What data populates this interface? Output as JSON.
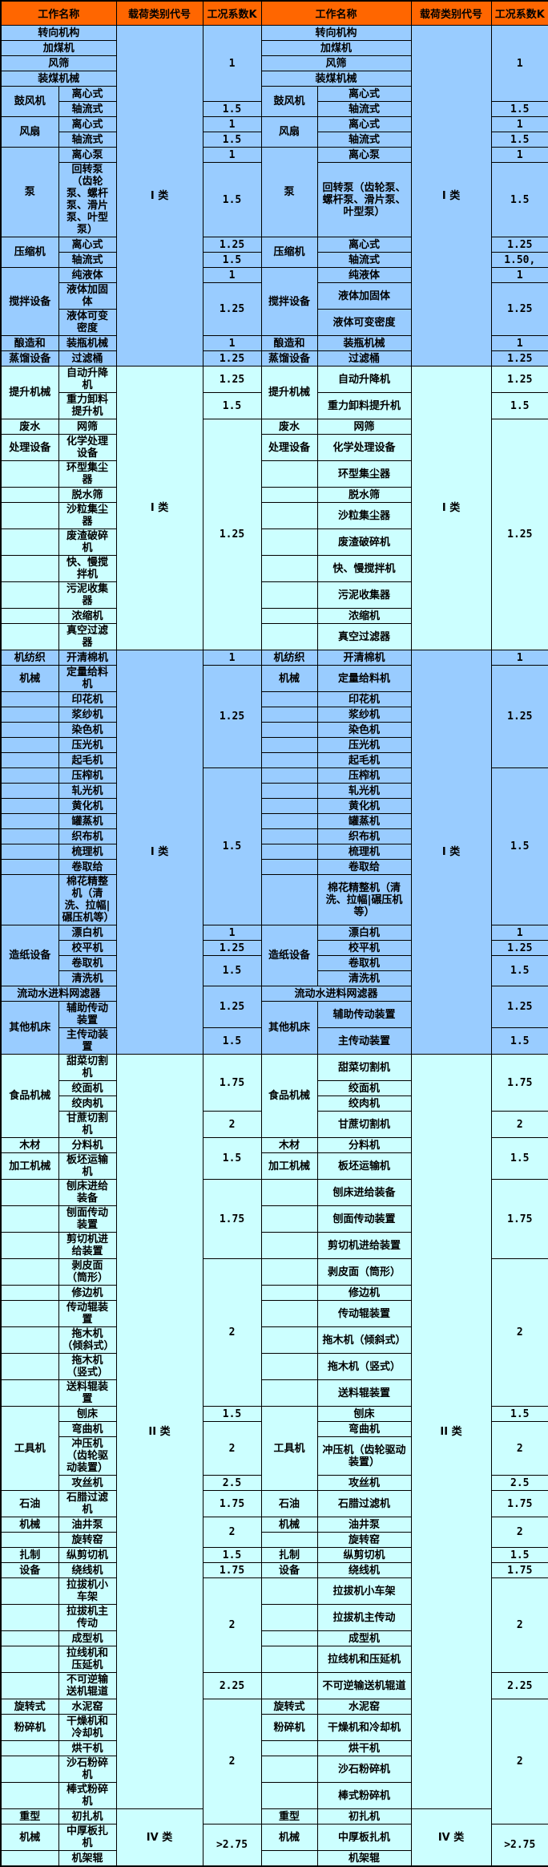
{
  "headers": {
    "work_name": "工作名称",
    "load_category": "载荷类别代号",
    "condition_coeff": "工况系数K"
  },
  "colors": {
    "header_bg": "#FF6600",
    "section_blue": "#99CCFF",
    "section_cyan": "#CCFFFF",
    "border": "#000000",
    "text": "#000000"
  },
  "load_categories": [
    "I 类",
    "II 类",
    "IV 类"
  ],
  "rows": [
    {
      "bg": "blue",
      "b": {
        "t": "转向机构",
        "cs": 2
      },
      "c": {
        "t": "I 类",
        "rs": 17
      },
      "k": {
        "t": "1",
        "rs": 5
      }
    },
    {
      "bg": "blue",
      "b": {
        "t": "加煤机",
        "cs": 2
      }
    },
    {
      "bg": "blue",
      "b": {
        "t": "风筛",
        "cs": 2
      }
    },
    {
      "bg": "blue",
      "b": {
        "t": "装煤机械",
        "cs": 2
      }
    },
    {
      "bg": "blue",
      "a": {
        "t": "鼓风机",
        "rs": 2
      },
      "b": {
        "t": "离心式"
      }
    },
    {
      "bg": "blue",
      "b": {
        "t": "轴流式"
      },
      "k": {
        "t": "1.5"
      }
    },
    {
      "bg": "blue",
      "a": {
        "t": "风扇",
        "rs": 2
      },
      "b": {
        "t": "离心式"
      },
      "k": {
        "t": "1"
      }
    },
    {
      "bg": "blue",
      "b": {
        "t": "轴流式"
      },
      "k": {
        "t": "1.5"
      }
    },
    {
      "bg": "blue",
      "a": {
        "t": "泵",
        "rs": 2
      },
      "b": {
        "t": "离心泵"
      },
      "k": {
        "t": "1"
      }
    },
    {
      "bg": "blue",
      "b": {
        "t": "回转泵（齿轮泵、螺杆泵、滑片泵、叶型泵）"
      },
      "k": {
        "t": "1.5"
      }
    },
    {
      "bg": "blue",
      "a": {
        "t": "压缩机",
        "rs": 2
      },
      "b": {
        "t": "离心式"
      },
      "k": {
        "t": "1.25"
      }
    },
    {
      "bg": "blue",
      "b": {
        "t": "轴流式"
      },
      "k": {
        "t": "1.5"
      },
      "kr": "1.50,"
    },
    {
      "bg": "blue",
      "a": {
        "t": "搅拌设备",
        "rs": 3
      },
      "b": {
        "t": "纯液体"
      },
      "k": {
        "t": "1"
      }
    },
    {
      "bg": "blue",
      "b": {
        "t": "液体加固体"
      },
      "k": {
        "t": "1.25",
        "rs": 2
      }
    },
    {
      "bg": "blue",
      "b": {
        "t": "液体可变密度"
      }
    },
    {
      "bg": "blue",
      "a": {
        "t": "酿造和"
      },
      "b": {
        "t": "装瓶机械"
      },
      "k": {
        "t": "1"
      }
    },
    {
      "bg": "blue",
      "a": {
        "t": "蒸馏设备"
      },
      "b": {
        "t": "过滤桶"
      },
      "k": {
        "t": "1.25"
      }
    },
    {
      "bg": "cyan",
      "a": {
        "t": "提升机械",
        "rs": 2
      },
      "b": {
        "t": "自动升降机"
      },
      "c": {
        "t": "I 类",
        "rs": 12
      },
      "k": {
        "t": "1.25"
      }
    },
    {
      "bg": "cyan",
      "b": {
        "t": "重力卸料提升机"
      },
      "k": {
        "t": "1.5"
      }
    },
    {
      "bg": "cyan",
      "a": {
        "t": "废水"
      },
      "b": {
        "t": "网筛"
      },
      "k": {
        "t": "1.25",
        "rs": 10
      }
    },
    {
      "bg": "cyan",
      "a": {
        "t": "处理设备"
      },
      "b": {
        "t": "化学处理设备"
      }
    },
    {
      "bg": "cyan",
      "a": {
        "t": ""
      },
      "b": {
        "t": "环型集尘器"
      }
    },
    {
      "bg": "cyan",
      "a": {
        "t": ""
      },
      "b": {
        "t": "脱水筛"
      }
    },
    {
      "bg": "cyan",
      "a": {
        "t": ""
      },
      "b": {
        "t": "沙粒集尘器"
      }
    },
    {
      "bg": "cyan",
      "a": {
        "t": ""
      },
      "b": {
        "t": "废渣破碎机"
      }
    },
    {
      "bg": "cyan",
      "a": {
        "t": ""
      },
      "b": {
        "t": "快、慢搅拌机"
      }
    },
    {
      "bg": "cyan",
      "a": {
        "t": ""
      },
      "b": {
        "t": "污泥收集器"
      }
    },
    {
      "bg": "cyan",
      "a": {
        "t": ""
      },
      "b": {
        "t": "浓缩机"
      }
    },
    {
      "bg": "cyan",
      "a": {
        "t": ""
      },
      "b": {
        "t": "真空过滤器"
      }
    },
    {
      "bg": "blue",
      "a": {
        "t": "机纺织"
      },
      "b": {
        "t": "开清棉机"
      },
      "c": {
        "t": "I 类",
        "rs": 22
      },
      "k": {
        "t": "1"
      }
    },
    {
      "bg": "blue",
      "a": {
        "t": "机械"
      },
      "b": {
        "t": "定量给料机"
      },
      "k": {
        "t": "1.25",
        "rs": 6
      }
    },
    {
      "bg": "blue",
      "a": {
        "t": ""
      },
      "b": {
        "t": "印花机"
      }
    },
    {
      "bg": "blue",
      "a": {
        "t": ""
      },
      "b": {
        "t": "浆纱机"
      }
    },
    {
      "bg": "blue",
      "a": {
        "t": ""
      },
      "b": {
        "t": "染色机"
      }
    },
    {
      "bg": "blue",
      "a": {
        "t": ""
      },
      "b": {
        "t": "压光机"
      }
    },
    {
      "bg": "blue",
      "a": {
        "t": ""
      },
      "b": {
        "t": "起毛机"
      }
    },
    {
      "bg": "blue",
      "a": {
        "t": ""
      },
      "b": {
        "t": "压榨机"
      },
      "k": {
        "t": "1.5",
        "rs": 8
      }
    },
    {
      "bg": "blue",
      "a": {
        "t": ""
      },
      "b": {
        "t": "轧光机"
      }
    },
    {
      "bg": "blue",
      "a": {
        "t": ""
      },
      "b": {
        "t": "黄化机"
      }
    },
    {
      "bg": "blue",
      "a": {
        "t": ""
      },
      "b": {
        "t": "罐蒸机"
      }
    },
    {
      "bg": "blue",
      "a": {
        "t": ""
      },
      "b": {
        "t": "织布机"
      }
    },
    {
      "bg": "blue",
      "a": {
        "t": ""
      },
      "b": {
        "t": "梳理机"
      }
    },
    {
      "bg": "blue",
      "a": {
        "t": ""
      },
      "b": {
        "t": "卷取给"
      }
    },
    {
      "bg": "blue",
      "a": {
        "t": ""
      },
      "b": {
        "t": "棉花精整机（清洗、拉幅|碾压机等）"
      }
    },
    {
      "bg": "blue",
      "a": {
        "t": "造纸设备",
        "rs": 4
      },
      "b": {
        "t": "漂白机"
      },
      "k": {
        "t": "1"
      }
    },
    {
      "bg": "blue",
      "b": {
        "t": "校平机"
      },
      "k": {
        "t": "1.25"
      }
    },
    {
      "bg": "blue",
      "b": {
        "t": "卷取机"
      },
      "k": {
        "t": "1.5",
        "rs": 2
      }
    },
    {
      "bg": "blue",
      "b": {
        "t": "清洗机"
      }
    },
    {
      "bg": "blue",
      "b": {
        "t": "流动水进料网滤器",
        "cs": 2
      },
      "k": {
        "t": "1.25",
        "rs": 2
      }
    },
    {
      "bg": "blue",
      "a": {
        "t": "其他机床",
        "rs": 2
      },
      "b": {
        "t": "辅助传动装置"
      }
    },
    {
      "bg": "blue",
      "b": {
        "t": "主传动装置"
      },
      "k": {
        "t": "1.5"
      }
    },
    {
      "bg": "cyan",
      "a": {
        "t": "食品机械",
        "rs": 4
      },
      "b": {
        "t": "甜菜切割机"
      },
      "c": {
        "t": "II 类",
        "rs": 34
      },
      "k": {
        "t": "1.75",
        "rs": 3
      }
    },
    {
      "bg": "cyan",
      "b": {
        "t": "绞面机"
      }
    },
    {
      "bg": "cyan",
      "b": {
        "t": "绞肉机"
      }
    },
    {
      "bg": "cyan",
      "b": {
        "t": "甘蔗切割机"
      },
      "k": {
        "t": "2"
      }
    },
    {
      "bg": "cyan",
      "a": {
        "t": "木材"
      },
      "b": {
        "t": "分料机"
      },
      "k": {
        "t": "1.5",
        "rs": 2
      }
    },
    {
      "bg": "cyan",
      "a": {
        "t": "加工机械"
      },
      "b": {
        "t": "板坯运输机"
      }
    },
    {
      "bg": "cyan",
      "a": {
        "t": ""
      },
      "b": {
        "t": "刨床进给装备"
      },
      "k": {
        "t": "1.75",
        "rs": 3
      }
    },
    {
      "bg": "cyan",
      "a": {
        "t": ""
      },
      "b": {
        "t": "刨面传动装置"
      }
    },
    {
      "bg": "cyan",
      "a": {
        "t": ""
      },
      "b": {
        "t": "剪切机进给装置"
      }
    },
    {
      "bg": "cyan",
      "a": {
        "t": ""
      },
      "b": {
        "t": "剥皮面（筒形）"
      },
      "k": {
        "t": "2",
        "rs": 6
      }
    },
    {
      "bg": "cyan",
      "a": {
        "t": ""
      },
      "b": {
        "t": "修边机"
      }
    },
    {
      "bg": "cyan",
      "a": {
        "t": ""
      },
      "b": {
        "t": "传动辊装置"
      }
    },
    {
      "bg": "cyan",
      "a": {
        "t": ""
      },
      "b": {
        "t": "拖木机（倾斜式）"
      }
    },
    {
      "bg": "cyan",
      "a": {
        "t": ""
      },
      "b": {
        "t": "拖木机（竖式）"
      }
    },
    {
      "bg": "cyan",
      "a": {
        "t": ""
      },
      "b": {
        "t": "送料辊装置"
      }
    },
    {
      "bg": "cyan",
      "a": {
        "t": "工具机",
        "rs": 4
      },
      "b": {
        "t": "刨床"
      },
      "k": {
        "t": "1.5"
      }
    },
    {
      "bg": "cyan",
      "b": {
        "t": "弯曲机"
      },
      "k": {
        "t": "2",
        "rs": 2
      }
    },
    {
      "bg": "cyan",
      "b": {
        "t": "冲压机（齿轮驱动装置）"
      }
    },
    {
      "bg": "cyan",
      "b": {
        "t": "攻丝机"
      },
      "k": {
        "t": "2.5"
      }
    },
    {
      "bg": "cyan",
      "a": {
        "t": "石油"
      },
      "b": {
        "t": "石腊过滤机"
      },
      "k": {
        "t": "1.75"
      }
    },
    {
      "bg": "cyan",
      "a": {
        "t": "机械"
      },
      "b": {
        "t": "油井泵"
      },
      "k": {
        "t": "2",
        "rs": 2
      }
    },
    {
      "bg": "cyan",
      "a": {
        "t": ""
      },
      "b": {
        "t": "旋转窑"
      }
    },
    {
      "bg": "cyan",
      "a": {
        "t": "扎制"
      },
      "b": {
        "t": "纵剪切机"
      },
      "k": {
        "t": "1.5"
      }
    },
    {
      "bg": "cyan",
      "a": {
        "t": "设备"
      },
      "b": {
        "t": "绕线机"
      },
      "k": {
        "t": "1.75"
      }
    },
    {
      "bg": "cyan",
      "a": {
        "t": ""
      },
      "b": {
        "t": "拉拔机小车架"
      },
      "k": {
        "t": "2",
        "rs": 4
      }
    },
    {
      "bg": "cyan",
      "a": {
        "t": ""
      },
      "b": {
        "t": "拉拔机主传动"
      }
    },
    {
      "bg": "cyan",
      "a": {
        "t": ""
      },
      "b": {
        "t": "成型机"
      }
    },
    {
      "bg": "cyan",
      "a": {
        "t": ""
      },
      "b": {
        "t": "拉线机和压延机"
      }
    },
    {
      "bg": "cyan",
      "a": {
        "t": ""
      },
      "b": {
        "t": "不可逆输送机辊道"
      },
      "k": {
        "t": "2.25"
      }
    },
    {
      "bg": "cyan",
      "a": {
        "t": "旋转式"
      },
      "b": {
        "t": "水泥窑"
      },
      "k": {
        "t": "2",
        "rs": 6
      }
    },
    {
      "bg": "cyan",
      "a": {
        "t": "粉碎机"
      },
      "b": {
        "t": "干燥机和冷却机"
      }
    },
    {
      "bg": "cyan",
      "a": {
        "t": ""
      },
      "b": {
        "t": "烘干机"
      }
    },
    {
      "bg": "cyan",
      "a": {
        "t": ""
      },
      "b": {
        "t": "沙石粉碎机"
      }
    },
    {
      "bg": "cyan",
      "a": {
        "t": ""
      },
      "b": {
        "t": "棒式粉碎机"
      }
    },
    {
      "bg": "cyan",
      "a": {
        "t": "重型"
      },
      "b": {
        "t": "初扎机"
      },
      "c": {
        "t": "IV 类",
        "rs": 3
      }
    },
    {
      "bg": "cyan",
      "a": {
        "t": "机械"
      },
      "b": {
        "t": "中厚板扎机"
      },
      "k": {
        "t": ">2.75",
        "rs": 2
      }
    },
    {
      "bg": "cyan",
      "a": {
        "t": ""
      },
      "b": {
        "t": "机架辊"
      }
    }
  ]
}
